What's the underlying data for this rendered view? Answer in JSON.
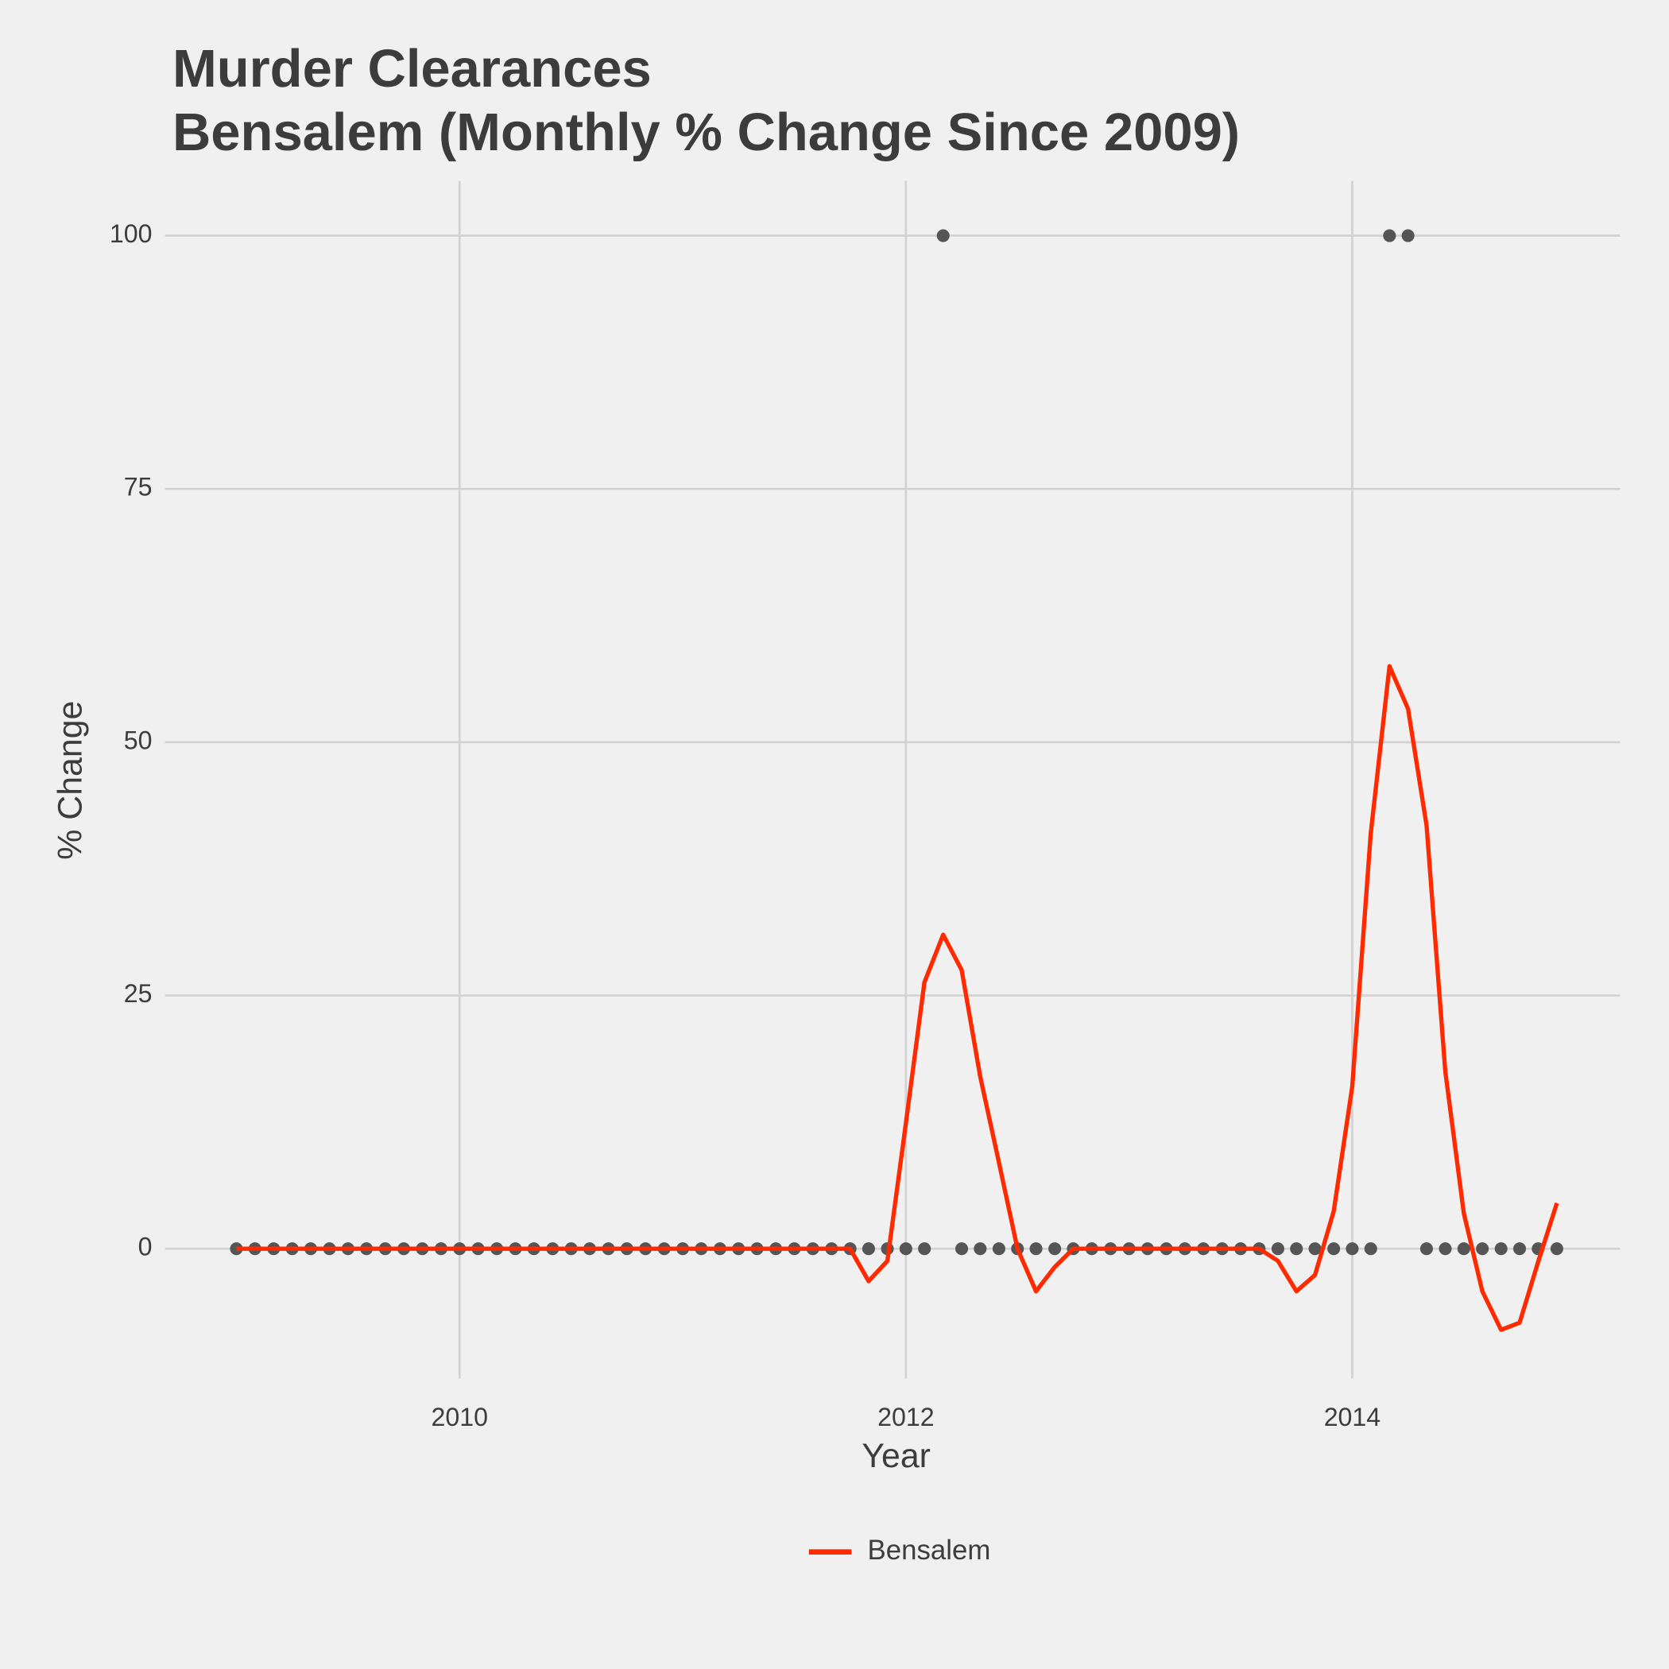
{
  "chart_data": {
    "type": "line",
    "title": "Murder Clearances",
    "subtitle": "Bensalem (Monthly % Change Since 2009)",
    "x_label": "Year",
    "y_label": "% Change",
    "x": [
      2009,
      2009.083,
      2009.167,
      2009.25,
      2009.333,
      2009.417,
      2009.5,
      2009.583,
      2009.667,
      2009.75,
      2009.833,
      2009.917,
      2010,
      2010.083,
      2010.167,
      2010.25,
      2010.333,
      2010.417,
      2010.5,
      2010.583,
      2010.667,
      2010.75,
      2010.833,
      2010.917,
      2011,
      2011.083,
      2011.167,
      2011.25,
      2011.333,
      2011.417,
      2011.5,
      2011.583,
      2011.667,
      2011.75,
      2011.833,
      2011.917,
      2012,
      2012.083,
      2012.167,
      2012.25,
      2012.333,
      2012.417,
      2012.5,
      2012.583,
      2012.667,
      2012.75,
      2012.833,
      2012.917,
      2013,
      2013.083,
      2013.167,
      2013.25,
      2013.333,
      2013.417,
      2013.5,
      2013.583,
      2013.667,
      2013.75,
      2013.833,
      2013.917,
      2014,
      2014.083,
      2014.167,
      2014.25,
      2014.333,
      2014.417,
      2014.5,
      2014.583,
      2014.667,
      2014.75,
      2014.833,
      2014.917
    ],
    "series": [
      {
        "name": "Bensalem",
        "type": "line",
        "color": "#ff2a00",
        "values": [
          0,
          0,
          0,
          0,
          0,
          0,
          0,
          0,
          0,
          0,
          0,
          0,
          0,
          0,
          0,
          0,
          0,
          0,
          0,
          0,
          0,
          0,
          0,
          0,
          0,
          0,
          0,
          0,
          0,
          0,
          0,
          0,
          0,
          0,
          -3.2,
          -1.2,
          12.4,
          26.3,
          31,
          27.5,
          17,
          8.5,
          0,
          -4.2,
          -1.8,
          0,
          0,
          0,
          0,
          0,
          0,
          0,
          0,
          0,
          0,
          0,
          -1.2,
          -4.2,
          -2.6,
          3.7,
          16,
          41,
          57.5,
          53.3,
          41.8,
          17.5,
          3.5,
          -4.2,
          -8,
          -7.3,
          -1.3,
          4.5
        ]
      },
      {
        "type": "scatter",
        "color": "#555555",
        "values": [
          0,
          0,
          0,
          0,
          0,
          0,
          0,
          0,
          0,
          0,
          0,
          0,
          0,
          0,
          0,
          0,
          0,
          0,
          0,
          0,
          0,
          0,
          0,
          0,
          0,
          0,
          0,
          0,
          0,
          0,
          0,
          0,
          0,
          0,
          0,
          0,
          0,
          0,
          100,
          0,
          0,
          0,
          0,
          0,
          0,
          0,
          0,
          0,
          0,
          0,
          0,
          0,
          0,
          0,
          0,
          0,
          0,
          0,
          0,
          0,
          0,
          0,
          100,
          100,
          0,
          0,
          0,
          0,
          0,
          0,
          0,
          0
        ]
      }
    ],
    "xlim": [
      2008.68,
      2015.2
    ],
    "xticks": [
      2010,
      2012,
      2014
    ],
    "ylim": [
      -12.8,
      105.4
    ],
    "yticks": [
      0,
      25,
      50,
      75,
      100
    ],
    "grid": true,
    "legend": "bottom"
  }
}
